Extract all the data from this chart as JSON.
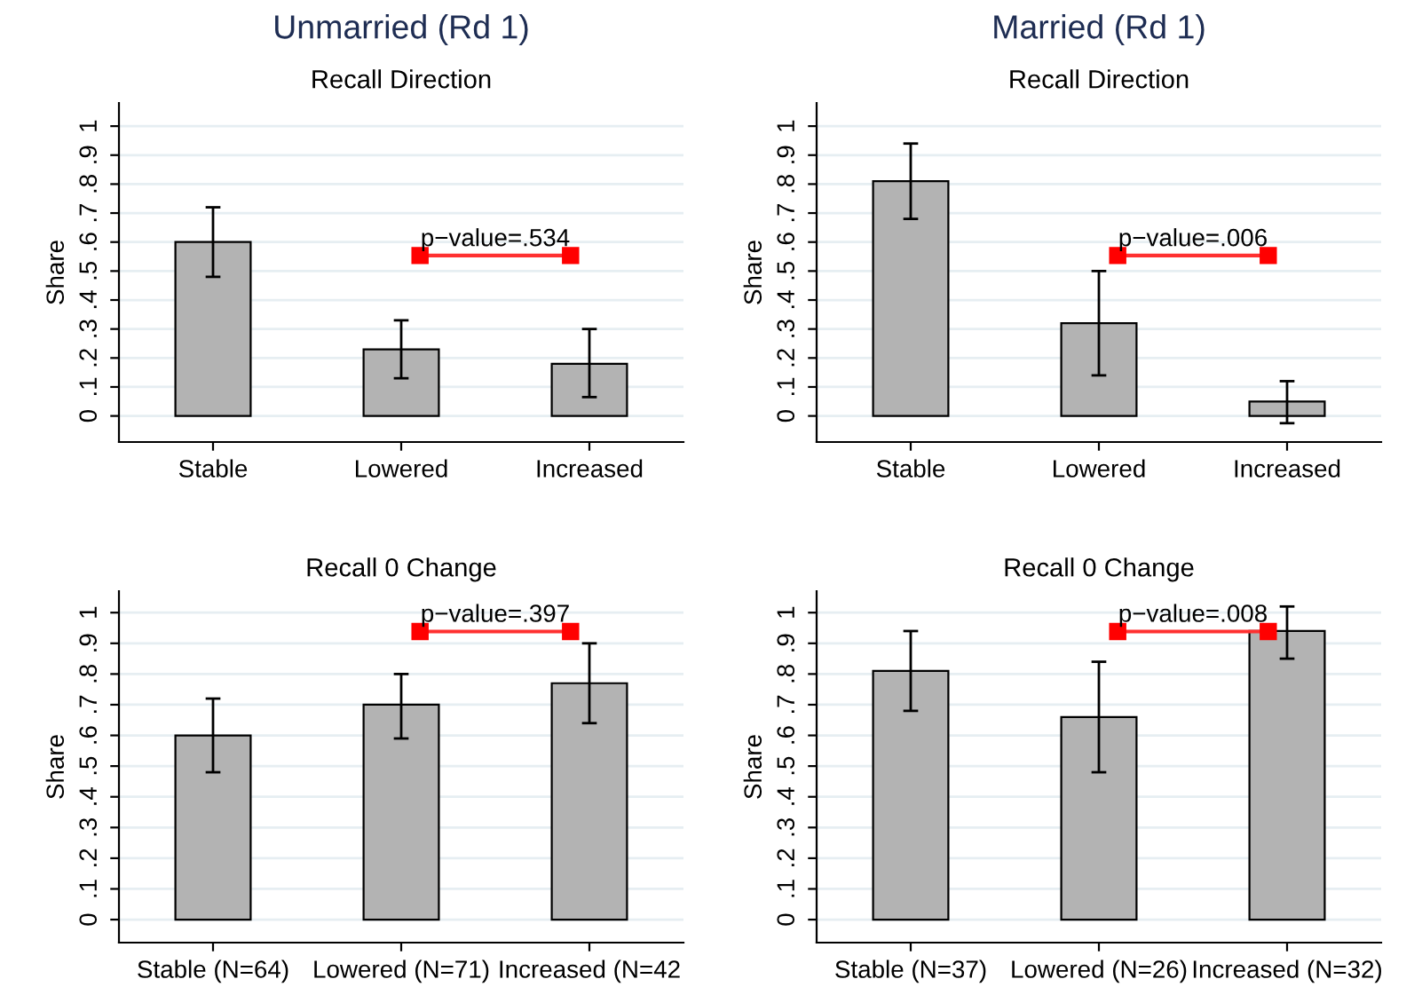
{
  "chart_data": [
    {
      "type": "bar",
      "title": "Unmarried (Rd 1)",
      "subtitle": "Recall Direction",
      "ylabel": "Share",
      "categories": [
        "Stable",
        "Lowered",
        "Increased"
      ],
      "values": [
        0.6,
        0.23,
        0.18
      ],
      "errors": [
        [
          0.48,
          0.72
        ],
        [
          0.13,
          0.33
        ],
        [
          0.065,
          0.3
        ]
      ],
      "color": "#b3b3b3",
      "ylim": [
        -0.09,
        1.08
      ],
      "yticks": [
        0,
        {
          "value": 0.1,
          "label": ".1"
        },
        {
          "value": 0.2,
          "label": ".2"
        },
        {
          "value": 0.3,
          "label": ".3"
        },
        {
          "value": 0.4,
          "label": ".4"
        },
        {
          "value": 0.5,
          "label": ".5"
        },
        {
          "value": 0.6,
          "label": ".6"
        },
        {
          "value": 0.7,
          "label": ".7"
        },
        {
          "value": 0.8,
          "label": ".8"
        },
        {
          "value": 0.9,
          "label": ".9"
        },
        1
      ],
      "grid": "y",
      "annotations": [
        "p−value=.534"
      ]
    },
    {
      "type": "bar",
      "title": "Married (Rd 1)",
      "subtitle": "Recall Direction",
      "ylabel": "Share",
      "categories": [
        "Stable",
        "Lowered",
        "Increased"
      ],
      "values": [
        0.81,
        0.32,
        0.05
      ],
      "errors": [
        [
          0.68,
          0.94
        ],
        [
          0.14,
          0.5
        ],
        [
          -0.025,
          0.12
        ]
      ],
      "color": "#b3b3b3",
      "ylim": [
        -0.09,
        1.08
      ],
      "yticks": [
        0,
        {
          "value": 0.1,
          "label": ".1"
        },
        {
          "value": 0.2,
          "label": ".2"
        },
        {
          "value": 0.3,
          "label": ".3"
        },
        {
          "value": 0.4,
          "label": ".4"
        },
        {
          "value": 0.5,
          "label": ".5"
        },
        {
          "value": 0.6,
          "label": ".6"
        },
        {
          "value": 0.7,
          "label": ".7"
        },
        {
          "value": 0.8,
          "label": ".8"
        },
        {
          "value": 0.9,
          "label": ".9"
        },
        1
      ],
      "grid": "y",
      "annotations": [
        "p−value=.006"
      ]
    },
    {
      "type": "bar",
      "subtitle": "Recall 0 Change",
      "ylabel": "Share",
      "categories": [
        "Stable (N=64)",
        "Lowered (N=71)",
        "Increased (N=42"
      ],
      "values": [
        0.6,
        0.7,
        0.77
      ],
      "errors": [
        [
          0.48,
          0.72
        ],
        [
          0.59,
          0.8
        ],
        [
          0.64,
          0.9
        ]
      ],
      "color": "#b3b3b3",
      "ylim": [
        -0.075,
        1.07
      ],
      "yticks": [
        0,
        {
          "value": 0.1,
          "label": ".1"
        },
        {
          "value": 0.2,
          "label": ".2"
        },
        {
          "value": 0.3,
          "label": ".3"
        },
        {
          "value": 0.4,
          "label": ".4"
        },
        {
          "value": 0.5,
          "label": ".5"
        },
        {
          "value": 0.6,
          "label": ".6"
        },
        {
          "value": 0.7,
          "label": ".7"
        },
        {
          "value": 0.8,
          "label": ".8"
        },
        {
          "value": 0.9,
          "label": ".9"
        },
        1
      ],
      "grid": "y",
      "annotations": [
        "p−value=.397"
      ]
    },
    {
      "type": "bar",
      "subtitle": "Recall 0 Change",
      "ylabel": "Share",
      "categories": [
        "Stable (N=37)",
        "Lowered (N=26)",
        "Increased (N=32)"
      ],
      "values": [
        0.81,
        0.66,
        0.94
      ],
      "errors": [
        [
          0.68,
          0.94
        ],
        [
          0.48,
          0.84
        ],
        [
          0.85,
          1.02
        ]
      ],
      "color": "#b3b3b3",
      "ylim": [
        -0.075,
        1.07
      ],
      "yticks": [
        0,
        {
          "value": 0.1,
          "label": ".1"
        },
        {
          "value": 0.2,
          "label": ".2"
        },
        {
          "value": 0.3,
          "label": ".3"
        },
        {
          "value": 0.4,
          "label": ".4"
        },
        {
          "value": 0.5,
          "label": ".5"
        },
        {
          "value": 0.6,
          "label": ".6"
        },
        {
          "value": 0.7,
          "label": ".7"
        },
        {
          "value": 0.8,
          "label": ".8"
        },
        {
          "value": 0.9,
          "label": ".9"
        },
        1
      ],
      "grid": "y",
      "annotations": [
        "p−value=.008"
      ]
    }
  ]
}
